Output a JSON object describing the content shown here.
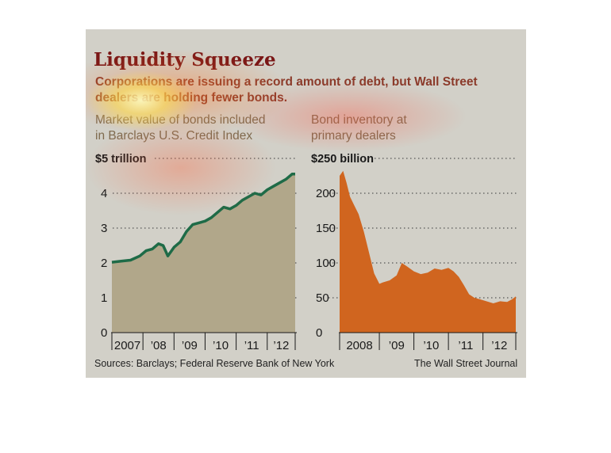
{
  "header": {
    "title": "Liquidity Squeeze",
    "subtitle": "Corporations are issuing a record amount of debt, but Wall Street dealers are holding fewer bonds."
  },
  "footer": {
    "source": "Sources: Barclays; Federal Reserve Bank of New York",
    "credit": "The Wall Street Journal"
  },
  "colors": {
    "background": "#d2d0c8",
    "left_area": "#b1a78a",
    "left_line": "#1e6b47",
    "right_area": "#d0651f",
    "title": "#7a1616"
  },
  "chart_data": [
    {
      "type": "area",
      "title": "Market value of bonds included\nin Barclays U.S. Credit Index",
      "y_tick_labels": [
        "0",
        "1",
        "2",
        "3",
        "4",
        "$5 trillion"
      ],
      "y_ticks": [
        0,
        1,
        2,
        3,
        4,
        5
      ],
      "ylim": [
        0,
        5
      ],
      "x_tick_labels": [
        "2007",
        "’08",
        "’09",
        "’10",
        "’11",
        "’12"
      ],
      "xlim": [
        2007.0,
        2012.9
      ],
      "grid": true,
      "series": [
        {
          "x": [
            2007.0,
            2007.3,
            2007.6,
            2007.9,
            2008.1,
            2008.3,
            2008.5,
            2008.65,
            2008.8,
            2009.0,
            2009.2,
            2009.4,
            2009.6,
            2009.8,
            2010.0,
            2010.2,
            2010.4,
            2010.6,
            2010.8,
            2011.0,
            2011.2,
            2011.4,
            2011.6,
            2011.8,
            2012.0,
            2012.2,
            2012.4,
            2012.6,
            2012.8,
            2012.9
          ],
          "y": [
            2.02,
            2.05,
            2.08,
            2.2,
            2.35,
            2.4,
            2.55,
            2.5,
            2.2,
            2.45,
            2.6,
            2.9,
            3.1,
            3.15,
            3.2,
            3.3,
            3.45,
            3.6,
            3.55,
            3.65,
            3.8,
            3.9,
            4.0,
            3.95,
            4.1,
            4.2,
            4.3,
            4.4,
            4.55,
            4.55
          ]
        }
      ]
    },
    {
      "type": "area",
      "title": "Bond inventory at\nprimary dealers",
      "y_tick_labels": [
        "0",
        "50",
        "100",
        "150",
        "200",
        "$250 billion"
      ],
      "y_ticks": [
        0,
        50,
        100,
        150,
        200,
        250
      ],
      "ylim": [
        0,
        250
      ],
      "x_tick_labels": [
        "2008",
        "’09",
        "’10",
        "’11",
        "’12"
      ],
      "xlim": [
        2007.75,
        2012.85
      ],
      "grid": true,
      "series": [
        {
          "x": [
            2007.75,
            2007.85,
            2007.95,
            2008.05,
            2008.15,
            2008.3,
            2008.45,
            2008.6,
            2008.75,
            2008.9,
            2009.0,
            2009.2,
            2009.4,
            2009.55,
            2009.7,
            2009.9,
            2010.1,
            2010.3,
            2010.5,
            2010.7,
            2010.9,
            2011.05,
            2011.2,
            2011.35,
            2011.5,
            2011.65,
            2011.8,
            2012.0,
            2012.2,
            2012.4,
            2012.6,
            2012.75,
            2012.85
          ],
          "y": [
            225,
            232,
            215,
            195,
            185,
            170,
            145,
            115,
            85,
            70,
            72,
            75,
            82,
            100,
            95,
            88,
            84,
            86,
            92,
            90,
            93,
            88,
            80,
            68,
            55,
            50,
            48,
            45,
            42,
            45,
            44,
            48,
            52
          ]
        }
      ]
    }
  ]
}
